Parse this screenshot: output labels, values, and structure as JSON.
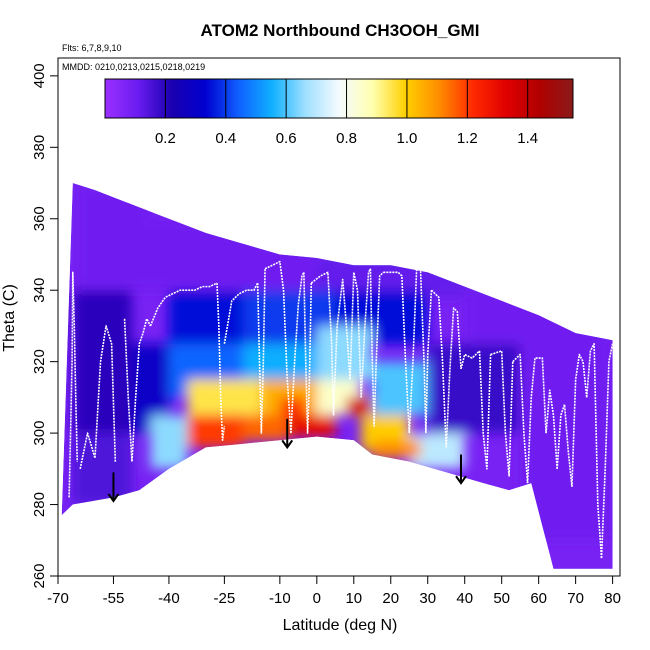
{
  "chart_data": {
    "type": "heatmap",
    "title": "ATOM2 Northbound CH3OOH_GMI",
    "flights_note": "Flts: 6,7,8,9,10",
    "dates_note": "MMDD: 0210,0213,0215,0218,0219",
    "xlabel": "Latitude (deg N)",
    "ylabel": "Theta (C)",
    "xlim": [
      -70,
      82
    ],
    "ylim": [
      260,
      405
    ],
    "x_ticks": [
      -70,
      -55,
      -40,
      -25,
      -10,
      0,
      10,
      20,
      30,
      40,
      50,
      60,
      70,
      80
    ],
    "y_ticks": [
      260,
      280,
      300,
      320,
      340,
      360,
      380,
      400
    ],
    "colorbar": {
      "range": [
        0,
        1.55
      ],
      "ticks": [
        0.2,
        0.4,
        0.6,
        0.8,
        1.0,
        1.2,
        1.4
      ],
      "tick_labels": [
        "0.2",
        "0.4",
        "0.6",
        "0.8",
        "1.0",
        "1.2",
        "1.4"
      ],
      "colors": [
        "#9b30ff",
        "#6a1cf0",
        "#1a00b0",
        "#0000d0",
        "#1060ff",
        "#10b0ff",
        "#a0e0ff",
        "#f5fbff",
        "#ffffb0",
        "#ffd000",
        "#ff8c00",
        "#ff2a00",
        "#e00000",
        "#b00000",
        "#8b1a1a"
      ]
    },
    "upper_boundary": [
      [
        -66,
        370
      ],
      [
        -60,
        368
      ],
      [
        -55,
        366
      ],
      [
        -50,
        364
      ],
      [
        -40,
        360
      ],
      [
        -30,
        356
      ],
      [
        -20,
        353
      ],
      [
        -10,
        350
      ],
      [
        0,
        349
      ],
      [
        10,
        347
      ],
      [
        20,
        347
      ],
      [
        30,
        345
      ],
      [
        40,
        341
      ],
      [
        50,
        337
      ],
      [
        60,
        333
      ],
      [
        70,
        328
      ],
      [
        80,
        326
      ]
    ],
    "lower_boundary": [
      [
        -69,
        277
      ],
      [
        -66,
        280
      ],
      [
        -55,
        282
      ],
      [
        -48,
        284
      ],
      [
        -40,
        290
      ],
      [
        -30,
        296
      ],
      [
        -20,
        297
      ],
      [
        -10,
        298
      ],
      [
        0,
        299
      ],
      [
        10,
        298
      ],
      [
        15,
        294
      ],
      [
        25,
        292
      ],
      [
        35,
        289
      ],
      [
        45,
        286
      ],
      [
        52,
        284
      ],
      [
        58,
        286
      ],
      [
        64,
        262
      ],
      [
        72,
        262
      ],
      [
        80,
        262
      ]
    ],
    "cells": [
      {
        "lat": [
          -65,
          -45
        ],
        "theta": [
          340,
          370
        ],
        "value": 0.1
      },
      {
        "lat": [
          -45,
          0
        ],
        "theta": [
          340,
          360
        ],
        "value": 0.1
      },
      {
        "lat": [
          0,
          40
        ],
        "theta": [
          338,
          350
        ],
        "value": 0.12
      },
      {
        "lat": [
          40,
          80
        ],
        "theta": [
          325,
          342
        ],
        "value": 0.1
      },
      {
        "lat": [
          -66,
          -50
        ],
        "theta": [
          300,
          340
        ],
        "value": 0.2
      },
      {
        "lat": [
          -66,
          -50
        ],
        "theta": [
          280,
          300
        ],
        "value": 0.15
      },
      {
        "lat": [
          -50,
          -40
        ],
        "theta": [
          300,
          325
        ],
        "value": 0.3
      },
      {
        "lat": [
          -40,
          -20
        ],
        "theta": [
          325,
          340
        ],
        "value": 0.35
      },
      {
        "lat": [
          -20,
          5
        ],
        "theta": [
          325,
          340
        ],
        "value": 0.4
      },
      {
        "lat": [
          5,
          30
        ],
        "theta": [
          325,
          340
        ],
        "value": 0.35
      },
      {
        "lat": [
          30,
          55
        ],
        "theta": [
          300,
          325
        ],
        "value": 0.18
      },
      {
        "lat": [
          55,
          80
        ],
        "theta": [
          270,
          325
        ],
        "value": 0.1
      },
      {
        "lat": [
          -40,
          -20
        ],
        "theta": [
          310,
          325
        ],
        "value": 0.45
      },
      {
        "lat": [
          -20,
          0
        ],
        "theta": [
          310,
          325
        ],
        "value": 0.55
      },
      {
        "lat": [
          0,
          15
        ],
        "theta": [
          315,
          330
        ],
        "value": 0.65
      },
      {
        "lat": [
          15,
          30
        ],
        "theta": [
          305,
          320
        ],
        "value": 0.6
      },
      {
        "lat": [
          -45,
          -35
        ],
        "theta": [
          290,
          305
        ],
        "value": 0.65
      },
      {
        "lat": [
          -35,
          -15
        ],
        "theta": [
          305,
          315
        ],
        "value": 0.95
      },
      {
        "lat": [
          -15,
          0
        ],
        "theta": [
          305,
          315
        ],
        "value": 1.05
      },
      {
        "lat": [
          0,
          12
        ],
        "theta": [
          305,
          315
        ],
        "value": 0.85
      },
      {
        "lat": [
          12,
          25
        ],
        "theta": [
          295,
          305
        ],
        "value": 1.0
      },
      {
        "lat": [
          25,
          40
        ],
        "theta": [
          290,
          300
        ],
        "value": 0.7
      },
      {
        "lat": [
          -35,
          -20
        ],
        "theta": [
          296,
          305
        ],
        "value": 1.2
      },
      {
        "lat": [
          -20,
          -8
        ],
        "theta": [
          298,
          305
        ],
        "value": 1.15
      },
      {
        "lat": [
          -8,
          5
        ],
        "theta": [
          299,
          305
        ],
        "value": 1.3
      },
      {
        "lat": [
          -10,
          -3
        ],
        "theta": [
          305,
          310
        ],
        "value": 1.2
      },
      {
        "lat": [
          8,
          15
        ],
        "theta": [
          305,
          310
        ],
        "value": 1.35
      },
      {
        "lat": [
          15,
          28
        ],
        "theta": [
          293,
          298
        ],
        "value": 1.1
      }
    ],
    "flight_tracks": [
      {
        "x": [
          -67,
          -66.6,
          -66.2,
          -66,
          -65.6,
          -65.2,
          -64.8
        ],
        "y": [
          282,
          300,
          320,
          345,
          330,
          310,
          292
        ]
      },
      {
        "x": [
          -64,
          -62,
          -60,
          -58.5,
          -57,
          -55.5,
          -54.5
        ],
        "y": [
          290,
          300,
          293,
          320,
          330,
          325,
          292
        ]
      },
      {
        "x": [
          -52,
          -51,
          -50,
          -49,
          -48,
          -47,
          -46,
          -45
        ],
        "y": [
          332,
          310,
          292,
          310,
          325,
          328,
          332,
          330
        ]
      },
      {
        "x": [
          -45,
          -43,
          -41,
          -39,
          -37,
          -35,
          -33,
          -31,
          -29,
          -27
        ],
        "y": [
          330,
          335,
          338,
          339,
          340,
          340,
          340,
          341,
          341,
          342
        ]
      },
      {
        "x": [
          -27,
          -26.5,
          -26,
          -25.5,
          -25
        ],
        "y": [
          342,
          330,
          310,
          298,
          302
        ]
      },
      {
        "x": [
          -25,
          -23,
          -21,
          -19,
          -17,
          -16
        ],
        "y": [
          325,
          337,
          339,
          340,
          340,
          342
        ]
      },
      {
        "x": [
          -16,
          -15.5,
          -15,
          -14.5,
          -14
        ],
        "y": [
          342,
          320,
          300,
          318,
          346
        ]
      },
      {
        "x": [
          -14,
          -12,
          -10,
          -9,
          -8,
          -7
        ],
        "y": [
          346,
          347,
          348,
          340,
          315,
          300
        ]
      },
      {
        "x": [
          -7,
          -6,
          -5,
          -4,
          -3.5
        ],
        "y": [
          300,
          320,
          336,
          344,
          345
        ]
      },
      {
        "x": [
          -3.5,
          -3,
          -2.5,
          -2,
          -1.5
        ],
        "y": [
          345,
          320,
          300,
          315,
          342
        ]
      },
      {
        "x": [
          -1.5,
          1,
          3,
          4,
          4.5
        ],
        "y": [
          342,
          344,
          345,
          325,
          305
        ]
      },
      {
        "x": [
          4.5,
          5.5,
          7,
          8,
          9
        ],
        "y": [
          305,
          330,
          343,
          330,
          315
        ]
      },
      {
        "x": [
          9,
          10,
          11,
          12
        ],
        "y": [
          315,
          345,
          340,
          310
        ]
      },
      {
        "x": [
          12,
          13,
          14,
          14.5
        ],
        "y": [
          310,
          330,
          345,
          346
        ]
      },
      {
        "x": [
          14.5,
          15,
          15.5,
          16,
          17,
          18
        ],
        "y": [
          346,
          320,
          302,
          318,
          344,
          345
        ]
      },
      {
        "x": [
          18,
          20,
          22,
          23,
          24,
          25
        ],
        "y": [
          345,
          345,
          345,
          344,
          320,
          300
        ]
      },
      {
        "x": [
          25,
          26,
          27,
          28
        ],
        "y": [
          300,
          320,
          346,
          347
        ]
      },
      {
        "x": [
          28,
          29,
          29.5,
          30,
          31
        ],
        "y": [
          347,
          320,
          300,
          322,
          340
        ]
      },
      {
        "x": [
          31,
          33,
          34,
          35
        ],
        "y": [
          340,
          338,
          320,
          296
        ]
      },
      {
        "x": [
          35,
          36,
          37,
          38,
          39
        ],
        "y": [
          296,
          318,
          335,
          334,
          318
        ]
      },
      {
        "x": [
          39,
          40,
          42,
          44
        ],
        "y": [
          318,
          322,
          321,
          323
        ]
      },
      {
        "x": [
          44,
          45,
          46,
          47
        ],
        "y": [
          323,
          300,
          290,
          322
        ]
      },
      {
        "x": [
          47,
          50,
          51,
          52,
          53
        ],
        "y": [
          322,
          323,
          300,
          288,
          320
        ]
      },
      {
        "x": [
          53,
          55,
          56,
          57
        ],
        "y": [
          320,
          322,
          300,
          286
        ]
      },
      {
        "x": [
          57,
          58,
          59,
          61,
          62
        ],
        "y": [
          286,
          310,
          321,
          321,
          300
        ]
      },
      {
        "x": [
          62,
          63,
          64,
          65
        ],
        "y": [
          300,
          312,
          305,
          290
        ]
      },
      {
        "x": [
          65,
          66,
          67,
          68,
          69
        ],
        "y": [
          290,
          305,
          308,
          295,
          285
        ]
      },
      {
        "x": [
          69,
          70,
          71,
          72,
          73
        ],
        "y": [
          285,
          315,
          322,
          320,
          310
        ]
      },
      {
        "x": [
          73,
          74,
          75,
          76,
          77
        ],
        "y": [
          310,
          323,
          325,
          280,
          265
        ]
      },
      {
        "x": [
          77,
          78,
          79,
          80
        ],
        "y": [
          265,
          290,
          320,
          325
        ]
      }
    ],
    "arrows": [
      {
        "lat": -55,
        "theta_from": 289,
        "theta_to": 281
      },
      {
        "lat": -8,
        "theta_from": 304,
        "theta_to": 296
      },
      {
        "lat": 39,
        "theta_from": 294,
        "theta_to": 286
      }
    ]
  }
}
